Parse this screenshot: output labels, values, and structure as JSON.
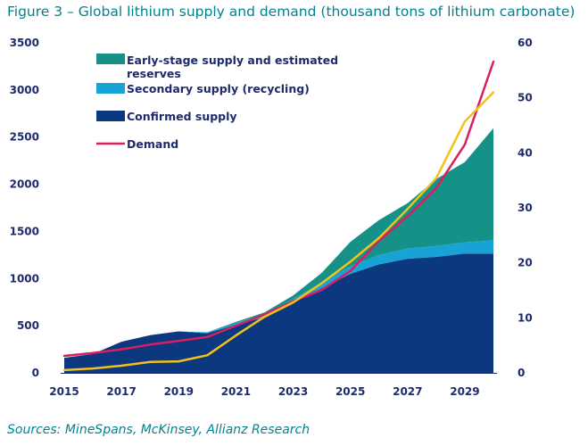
{
  "title": "Figure 3 – Global lithium supply and demand (thousand tons of lithium carbonate)",
  "source": "Sources: MineSpans, McKinsey, Allianz Research",
  "colors": {
    "confirmed": "#0c3880",
    "secondary": "#18a3d6",
    "early": "#159187",
    "demand": "#d91e62",
    "yellow": "#f2c21a",
    "text": "#1d2a6b"
  },
  "chart_data": {
    "type": "area",
    "title": "Global lithium supply and demand (thousand tons of lithium carbonate)",
    "x": [
      2015,
      2016,
      2017,
      2018,
      2019,
      2020,
      2021,
      2022,
      2023,
      2024,
      2025,
      2026,
      2027,
      2028,
      2029,
      2030
    ],
    "x_tick_labels": [
      "2015",
      "2017",
      "2019",
      "2021",
      "2023",
      "2025",
      "2027",
      "2029"
    ],
    "y_left_ticks": [
      "0",
      "500",
      "1000",
      "1500",
      "2000",
      "2500",
      "3000",
      "3500"
    ],
    "y_right_ticks": [
      "0",
      "10",
      "20",
      "30",
      "40",
      "50",
      "60"
    ],
    "ylim_left": [
      0,
      3500
    ],
    "ylim_right": [
      0,
      60
    ],
    "series": [
      {
        "name": "Confirmed supply",
        "kind": "stacked-area",
        "values": [
          160,
          200,
          330,
          400,
          440,
          420,
          510,
          590,
          740,
          900,
          1050,
          1150,
          1210,
          1230,
          1265,
          1265
        ]
      },
      {
        "name": "Secondary supply (recycling)",
        "kind": "stacked-area",
        "values": [
          0,
          0,
          0,
          0,
          0,
          10,
          20,
          30,
          40,
          60,
          80,
          100,
          110,
          115,
          120,
          140
        ]
      },
      {
        "name": "Early-stage supply and estimated reserves",
        "kind": "stacked-area",
        "values": [
          0,
          0,
          0,
          0,
          0,
          0,
          10,
          20,
          40,
          100,
          260,
          370,
          480,
          710,
          850,
          1190
        ]
      },
      {
        "name": "Demand",
        "kind": "line",
        "values": [
          180,
          210,
          250,
          300,
          340,
          380,
          500,
          620,
          760,
          880,
          1080,
          1400,
          1660,
          1960,
          2420,
          3300
        ]
      },
      {
        "name": "",
        "kind": "line",
        "axis": "right",
        "values": [
          0.5,
          0.8,
          1.3,
          2.0,
          2.1,
          3.2,
          6.8,
          10.2,
          12.8,
          16.3,
          20.2,
          24.5,
          29.8,
          35.4,
          45.7,
          51.0
        ]
      }
    ],
    "legend": [
      {
        "label": "Early-stage supply and estimated reserves",
        "marker": "patch",
        "color": "#159187"
      },
      {
        "label": "Secondary supply (recycling)",
        "marker": "patch",
        "color": "#18a3d6"
      },
      {
        "label": "Confirmed supply",
        "marker": "patch",
        "color": "#0c3880"
      },
      {
        "label": "Demand",
        "marker": "line",
        "color": "#d91e62"
      }
    ],
    "legend_position": "top-left"
  }
}
